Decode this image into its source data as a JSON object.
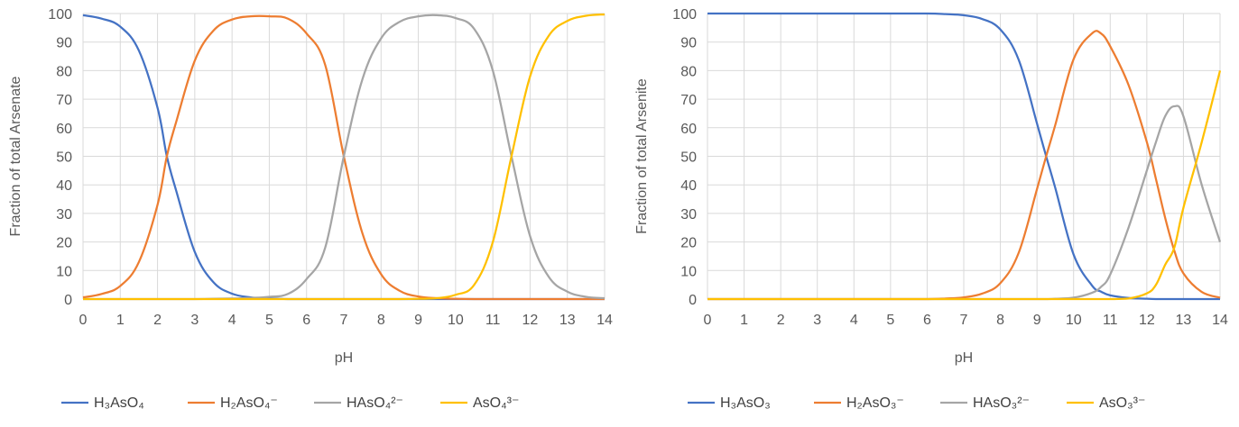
{
  "chart_data": [
    {
      "type": "line",
      "xlabel": "pH",
      "ylabel": "Fraction of total Arsenate",
      "xlim": [
        0,
        14
      ],
      "ylim": [
        0,
        100
      ],
      "xticks": [
        "0",
        "1",
        "2",
        "3",
        "4",
        "5",
        "6",
        "7",
        "8",
        "9",
        "10",
        "11",
        "12",
        "13",
        "14"
      ],
      "yticks": [
        "0",
        "10",
        "20",
        "30",
        "40",
        "50",
        "60",
        "70",
        "80",
        "90",
        "100"
      ],
      "grid": true,
      "legend_position": "bottom",
      "x": [
        0,
        0.5,
        1,
        1.5,
        2,
        2.25,
        2.5,
        3,
        3.5,
        4,
        4.5,
        5,
        5.5,
        6,
        6.5,
        7,
        7.5,
        8,
        8.5,
        9,
        9.5,
        10,
        10.5,
        11,
        11.5,
        12,
        12.5,
        13,
        13.5,
        14
      ],
      "series": [
        {
          "name": "H₃AsO₄",
          "color": "#4472C4",
          "values": [
            99.4,
            98.2,
            95.4,
            87,
            67,
            50,
            38,
            16.5,
            5.9,
            1.9,
            0.6,
            0.2,
            0,
            0,
            0,
            0,
            0,
            0,
            0,
            0,
            0,
            0,
            0,
            0,
            0,
            0,
            0,
            0,
            0,
            0
          ]
        },
        {
          "name": "H₂AsO₄⁻",
          "color": "#ED7D31",
          "values": [
            0.6,
            1.8,
            4.6,
            13,
            33,
            50,
            62,
            83.5,
            94,
            97.9,
            99,
            99,
            98.2,
            93,
            82,
            50,
            23,
            8.7,
            2.9,
            0.9,
            0.3,
            0.1,
            0,
            0,
            0,
            0,
            0,
            0,
            0,
            0
          ]
        },
        {
          "name": "HAsO₄²⁻",
          "color": "#A5A5A5",
          "values": [
            0,
            0,
            0,
            0,
            0,
            0,
            0,
            0,
            0.1,
            0.2,
            0.4,
            0.8,
            1.8,
            7,
            18,
            50,
            77,
            91.3,
            97.1,
            99,
            99.4,
            98.4,
            94.6,
            80,
            50,
            22,
            7.8,
            2.6,
            0.8,
            0.3
          ]
        },
        {
          "name": "AsO₄³⁻",
          "color": "#FFC000",
          "values": [
            0,
            0,
            0,
            0,
            0,
            0,
            0,
            0,
            0,
            0,
            0,
            0,
            0,
            0,
            0,
            0,
            0,
            0,
            0,
            0.1,
            0.3,
            1.5,
            5,
            20,
            50,
            78,
            92.2,
            97.4,
            99.2,
            99.7
          ]
        }
      ]
    },
    {
      "type": "line",
      "xlabel": "pH",
      "ylabel": "Fraction of total Arsenite",
      "xlim": [
        0,
        14
      ],
      "ylim": [
        0,
        100
      ],
      "xticks": [
        "0",
        "1",
        "2",
        "3",
        "4",
        "5",
        "6",
        "7",
        "8",
        "9",
        "10",
        "11",
        "12",
        "13",
        "14"
      ],
      "yticks": [
        "0",
        "10",
        "20",
        "30",
        "40",
        "50",
        "60",
        "70",
        "80",
        "90",
        "100"
      ],
      "grid": true,
      "legend_position": "bottom",
      "x": [
        0,
        1,
        2,
        3,
        4,
        5,
        6,
        6.5,
        7,
        7.5,
        8,
        8.5,
        9,
        9.25,
        9.5,
        10,
        10.5,
        10.75,
        11,
        11.5,
        12,
        12.25,
        12.5,
        12.75,
        13,
        13.5,
        14
      ],
      "series": [
        {
          "name": "H₃AsO₃",
          "color": "#4472C4",
          "values": [
            100,
            100,
            100,
            100,
            100,
            100,
            100,
            99.8,
            99.4,
            98.1,
            94.4,
            83.8,
            61.5,
            50,
            38.9,
            15.6,
            4.8,
            2.6,
            1.3,
            0.4,
            0.1,
            0,
            0,
            0,
            0,
            0,
            0
          ]
        },
        {
          "name": "H₂AsO₃⁻",
          "color": "#ED7D31",
          "values": [
            0,
            0,
            0,
            0,
            0,
            0,
            0,
            0.2,
            0.6,
            1.9,
            5.6,
            16.2,
            38.5,
            50,
            61,
            84,
            93,
            93,
            88.5,
            75,
            55,
            42,
            28.5,
            17,
            9,
            2.5,
            0.5
          ]
        },
        {
          "name": "HAsO₃²⁻",
          "color": "#A5A5A5",
          "values": [
            0,
            0,
            0,
            0,
            0,
            0,
            0,
            0,
            0,
            0,
            0,
            0,
            0,
            0,
            0.1,
            0.5,
            2.2,
            4.3,
            8.6,
            25,
            45,
            55,
            64,
            67.5,
            64,
            40,
            20
          ]
        },
        {
          "name": "AsO₃³⁻",
          "color": "#FFC000",
          "values": [
            0,
            0,
            0,
            0,
            0,
            0,
            0,
            0,
            0,
            0,
            0,
            0,
            0,
            0,
            0,
            0,
            0,
            0,
            0,
            0.2,
            2,
            5,
            12,
            18,
            32,
            55,
            80
          ]
        }
      ]
    }
  ]
}
